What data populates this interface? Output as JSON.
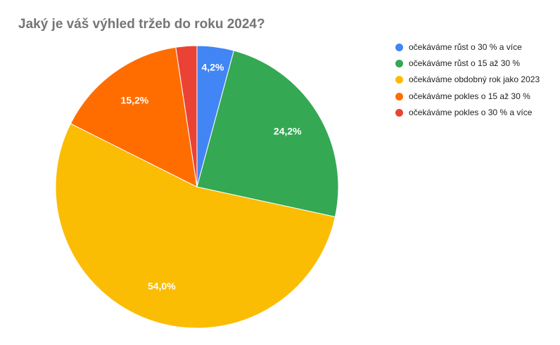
{
  "chart_data": {
    "type": "pie",
    "title": "Jaký je váš výhled tržeb do roku 2024?",
    "legend_position": "right",
    "slices": [
      {
        "label": "očekáváme růst o 30 % a více",
        "value": 4.2,
        "display": "4,2%",
        "color": "#4285f4"
      },
      {
        "label": "očekáváme růst o 15 až 30 %",
        "value": 24.2,
        "display": "24,2%",
        "color": "#34a853"
      },
      {
        "label": "očekáváme obdobný rok jako 2023",
        "value": 54.0,
        "display": "54,0%",
        "color": "#fbbc04"
      },
      {
        "label": "očekáváme pokles o 15 až 30 %",
        "value": 15.2,
        "display": "15,2%",
        "color": "#ff6d01"
      },
      {
        "label": "očekáváme pokles o 30 % a více",
        "value": 2.4,
        "display": "",
        "color": "#ea4335"
      }
    ]
  }
}
